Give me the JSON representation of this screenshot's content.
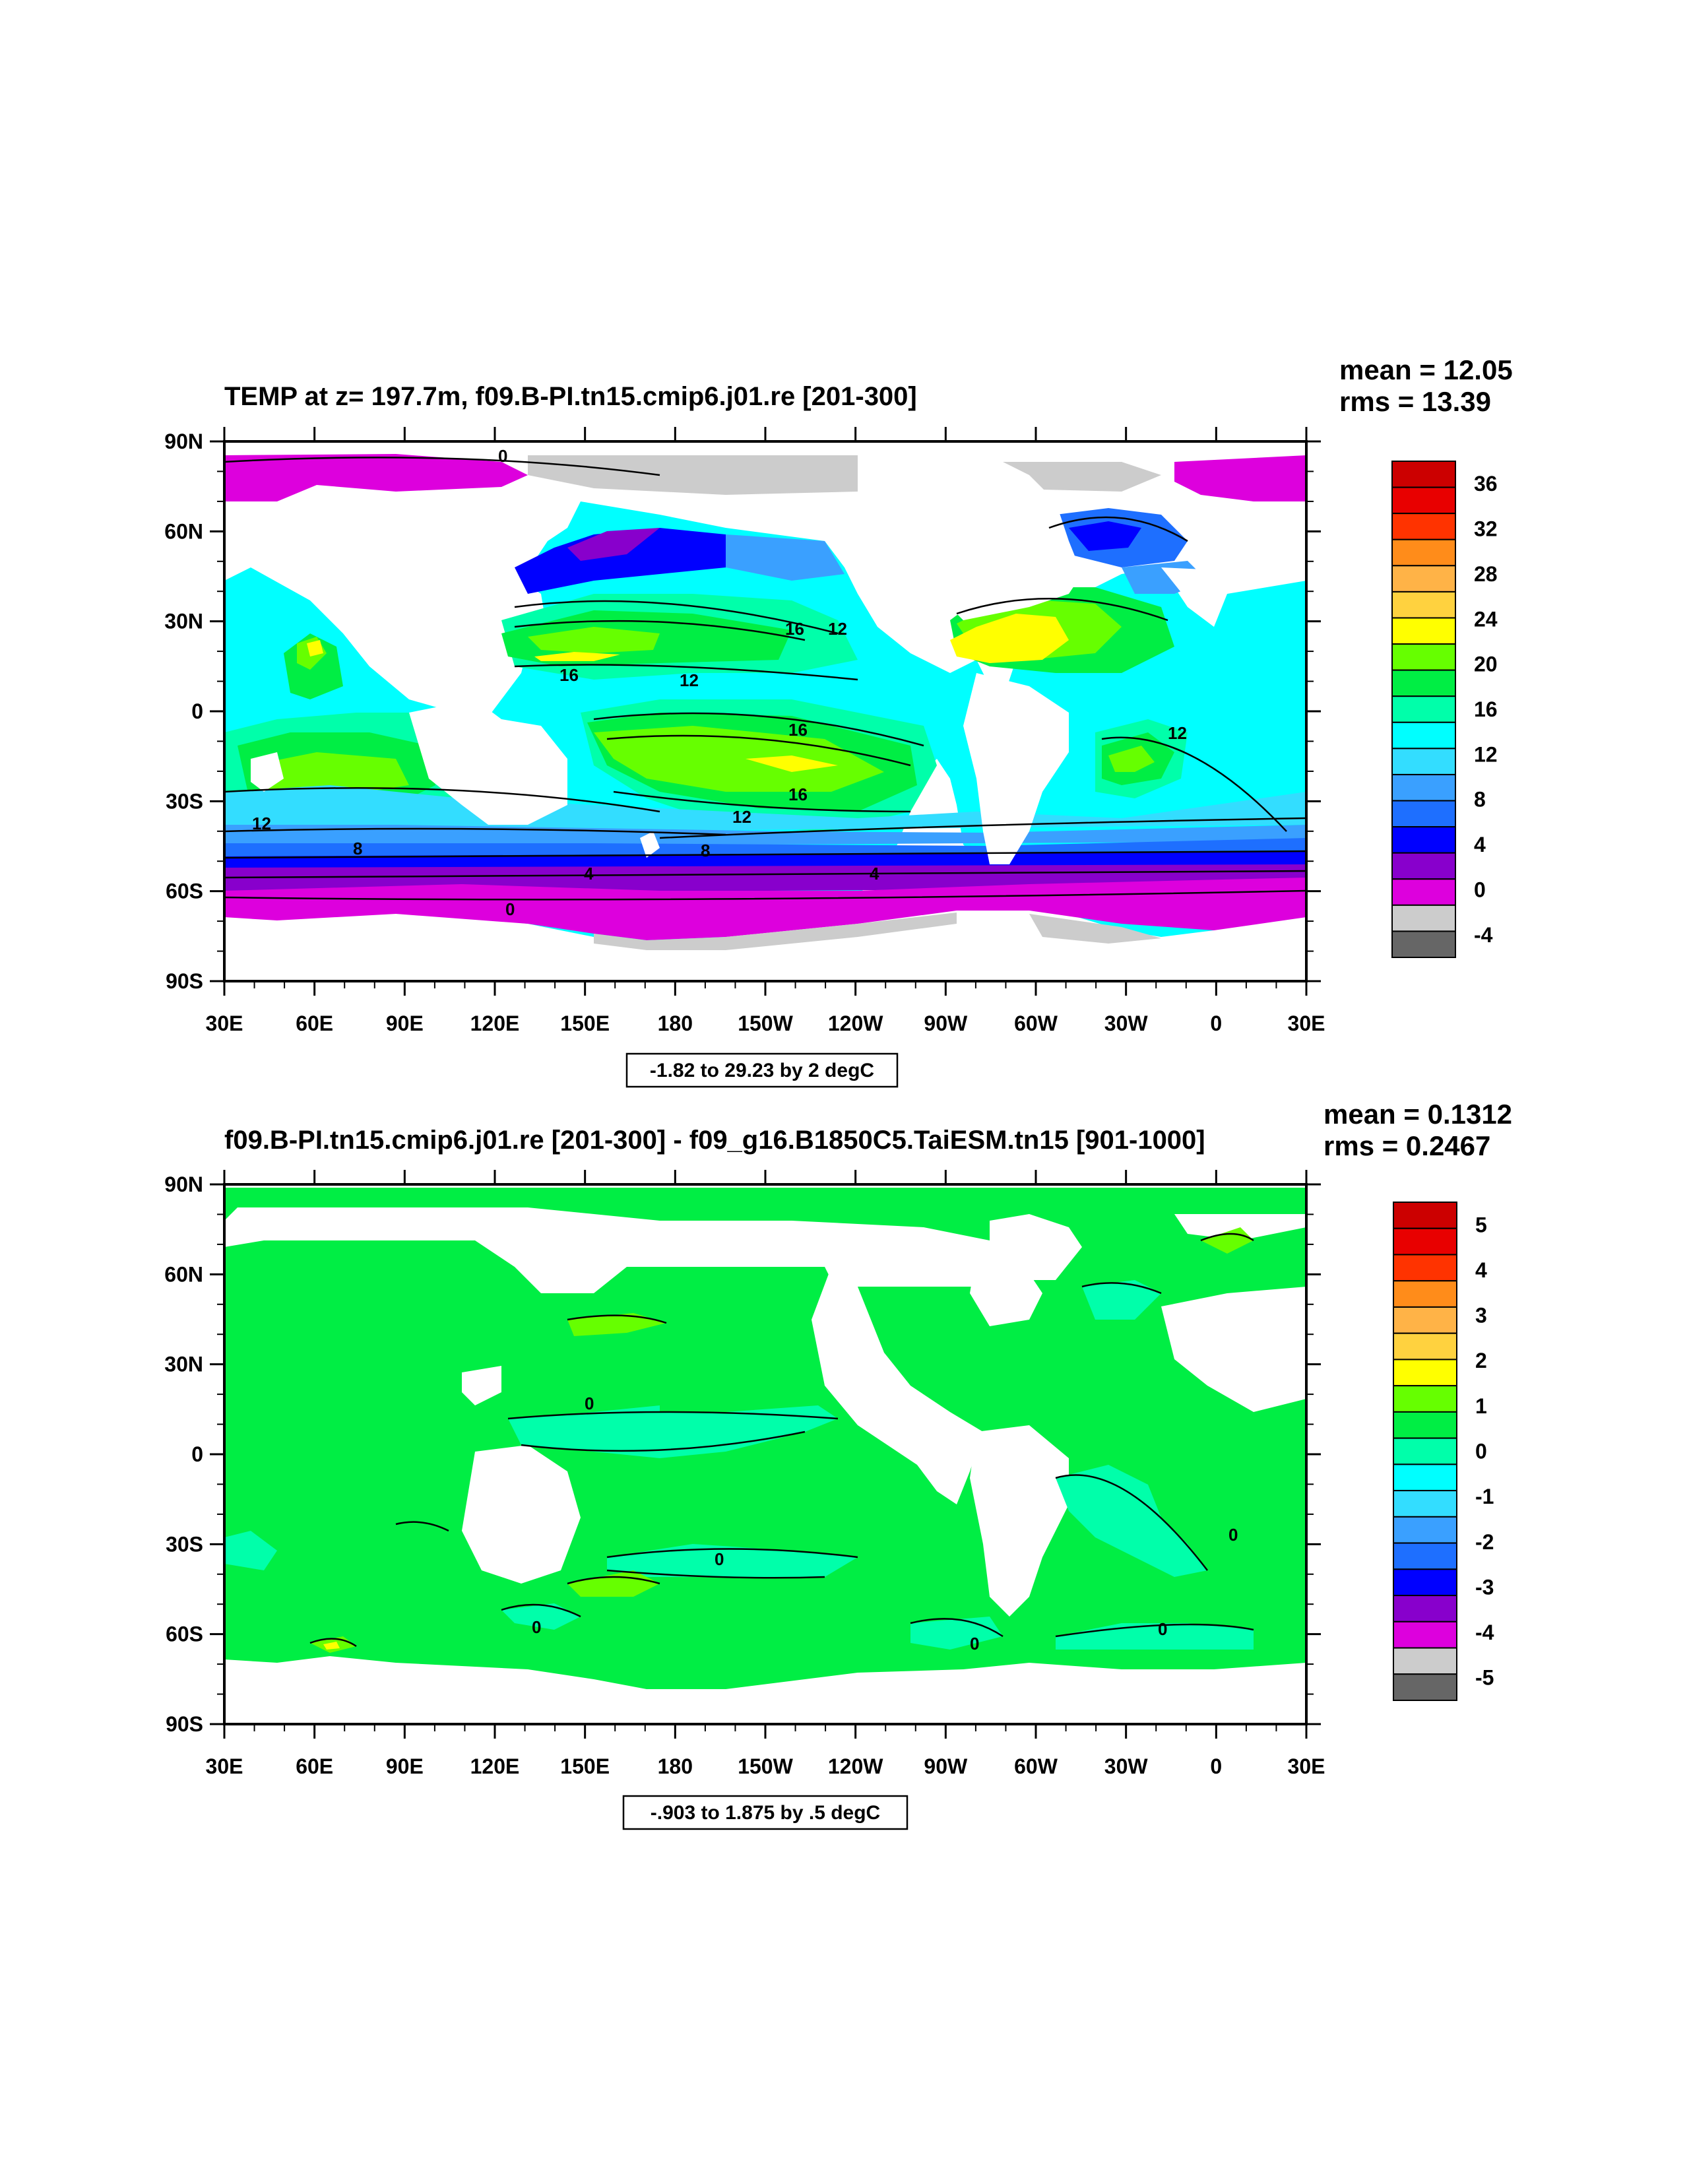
{
  "panels": [
    {
      "title": "TEMP at z= 197.7m, f09.B-PI.tn15.cmip6.j01.re [201-300]",
      "mean_text": "mean = 12.05",
      "rms_text": "rms = 13.39",
      "info_text": "-1.82 to 29.23 by 2 degC",
      "contour_labels": [
        "0",
        "16",
        "12",
        "16",
        "12",
        "16",
        "12",
        "16",
        "12",
        "12",
        "8",
        "8",
        "4",
        "4",
        "0"
      ],
      "colorbar": {
        "labels": [
          "36",
          "32",
          "28",
          "24",
          "20",
          "16",
          "12",
          "8",
          "4",
          "0",
          "-4"
        ],
        "colors": [
          "#cc0000",
          "#e80000",
          "#ff3300",
          "#ff8c1a",
          "#ffb347",
          "#ffd23f",
          "#ffff00",
          "#66ff00",
          "#00ee44",
          "#00ffaa",
          "#00ffff",
          "#33ddff",
          "#3aa0ff",
          "#1e6fff",
          "#0000ff",
          "#8800cc",
          "#dd00dd",
          "#cccccc",
          "#666666"
        ]
      }
    },
    {
      "title": "f09.B-PI.tn15.cmip6.j01.re [201-300] - f09_g16.B1850C5.TaiESM.tn15 [901-1000]",
      "mean_text": "mean = 0.1312",
      "rms_text": "rms = 0.2467",
      "info_text": "-.903 to 1.875 by .5 degC",
      "contour_labels": [
        "0",
        "0",
        "0",
        "0",
        "0",
        "0"
      ],
      "colorbar": {
        "labels": [
          "5",
          "4",
          "3",
          "2",
          "1",
          "0",
          "-1",
          "-2",
          "-3",
          "-4",
          "-5"
        ],
        "colors": [
          "#cc0000",
          "#e80000",
          "#ff3300",
          "#ff8c1a",
          "#ffb347",
          "#ffd23f",
          "#ffff00",
          "#66ff00",
          "#00ee44",
          "#00ffaa",
          "#00ffff",
          "#33ddff",
          "#3aa0ff",
          "#1e6fff",
          "#0000ff",
          "#8800cc",
          "#dd00dd",
          "#cccccc",
          "#666666"
        ]
      }
    }
  ],
  "axes": {
    "lat_labels": [
      "90N",
      "60N",
      "30N",
      "0",
      "30S",
      "60S",
      "90S"
    ],
    "lon_labels": [
      "30E",
      "60E",
      "90E",
      "120E",
      "150E",
      "180",
      "150W",
      "120W",
      "90W",
      "60W",
      "30W",
      "0",
      "30E"
    ]
  },
  "colors": {
    "land": "#ffffff",
    "polar_ice": "#cccccc"
  }
}
